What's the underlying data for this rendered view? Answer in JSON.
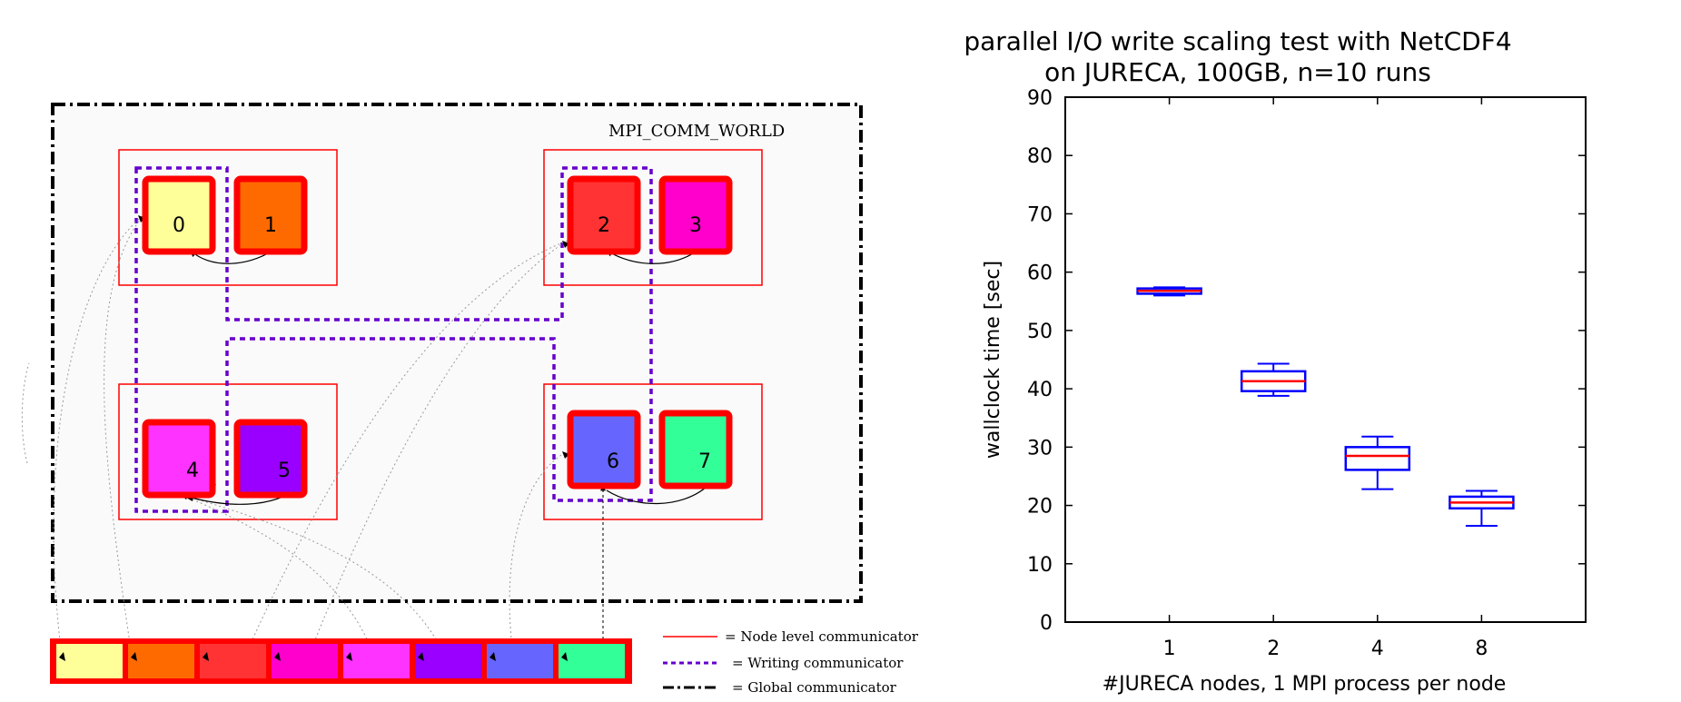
{
  "diagram": {
    "world_label": "MPI_COMM_WORLD",
    "ranks": [
      {
        "label": "0",
        "color": "#ffff99"
      },
      {
        "label": "1",
        "color": "#ff6a00"
      },
      {
        "label": "2",
        "color": "#ff3333"
      },
      {
        "label": "3",
        "color": "#ff00cc"
      },
      {
        "label": "4",
        "color": "#ff33ff"
      },
      {
        "label": "5",
        "color": "#9900ff"
      },
      {
        "label": "6",
        "color": "#6666ff"
      },
      {
        "label": "7",
        "color": "#33ff99"
      }
    ],
    "legend": [
      {
        "label": "= Node level communicator",
        "color": "#ff0000"
      },
      {
        "label": "= Writing communicator",
        "color": "#6600cc"
      },
      {
        "label": "= Global communicator",
        "color": "#000000"
      }
    ]
  },
  "chart_data": {
    "type": "box",
    "title": "parallel I/O write scaling test with NetCDF4\non JURECA, 100GB, n=10 runs",
    "title_lines": [
      "parallel I/O write scaling test with NetCDF4",
      "on JURECA, 100GB, n=10 runs"
    ],
    "xlabel": "#JURECA nodes, 1 MPI process per node",
    "ylabel": "wallclock time [sec]",
    "categories": [
      "1",
      "2",
      "4",
      "8"
    ],
    "ylim": [
      0,
      90
    ],
    "yticks": [
      0,
      10,
      20,
      30,
      40,
      50,
      60,
      70,
      80,
      90
    ],
    "boxes": [
      {
        "min": 56.0,
        "q1": 56.3,
        "median": 56.8,
        "q3": 57.2,
        "max": 57.4
      },
      {
        "min": 38.8,
        "q1": 39.6,
        "median": 41.3,
        "q3": 43.0,
        "max": 44.3
      },
      {
        "min": 22.8,
        "q1": 26.1,
        "median": 28.5,
        "q3": 30.0,
        "max": 31.8
      },
      {
        "min": 16.5,
        "q1": 19.5,
        "median": 20.5,
        "q3": 21.5,
        "max": 22.5
      }
    ],
    "box_color": "#0000ff",
    "median_color": "#ff0000"
  }
}
